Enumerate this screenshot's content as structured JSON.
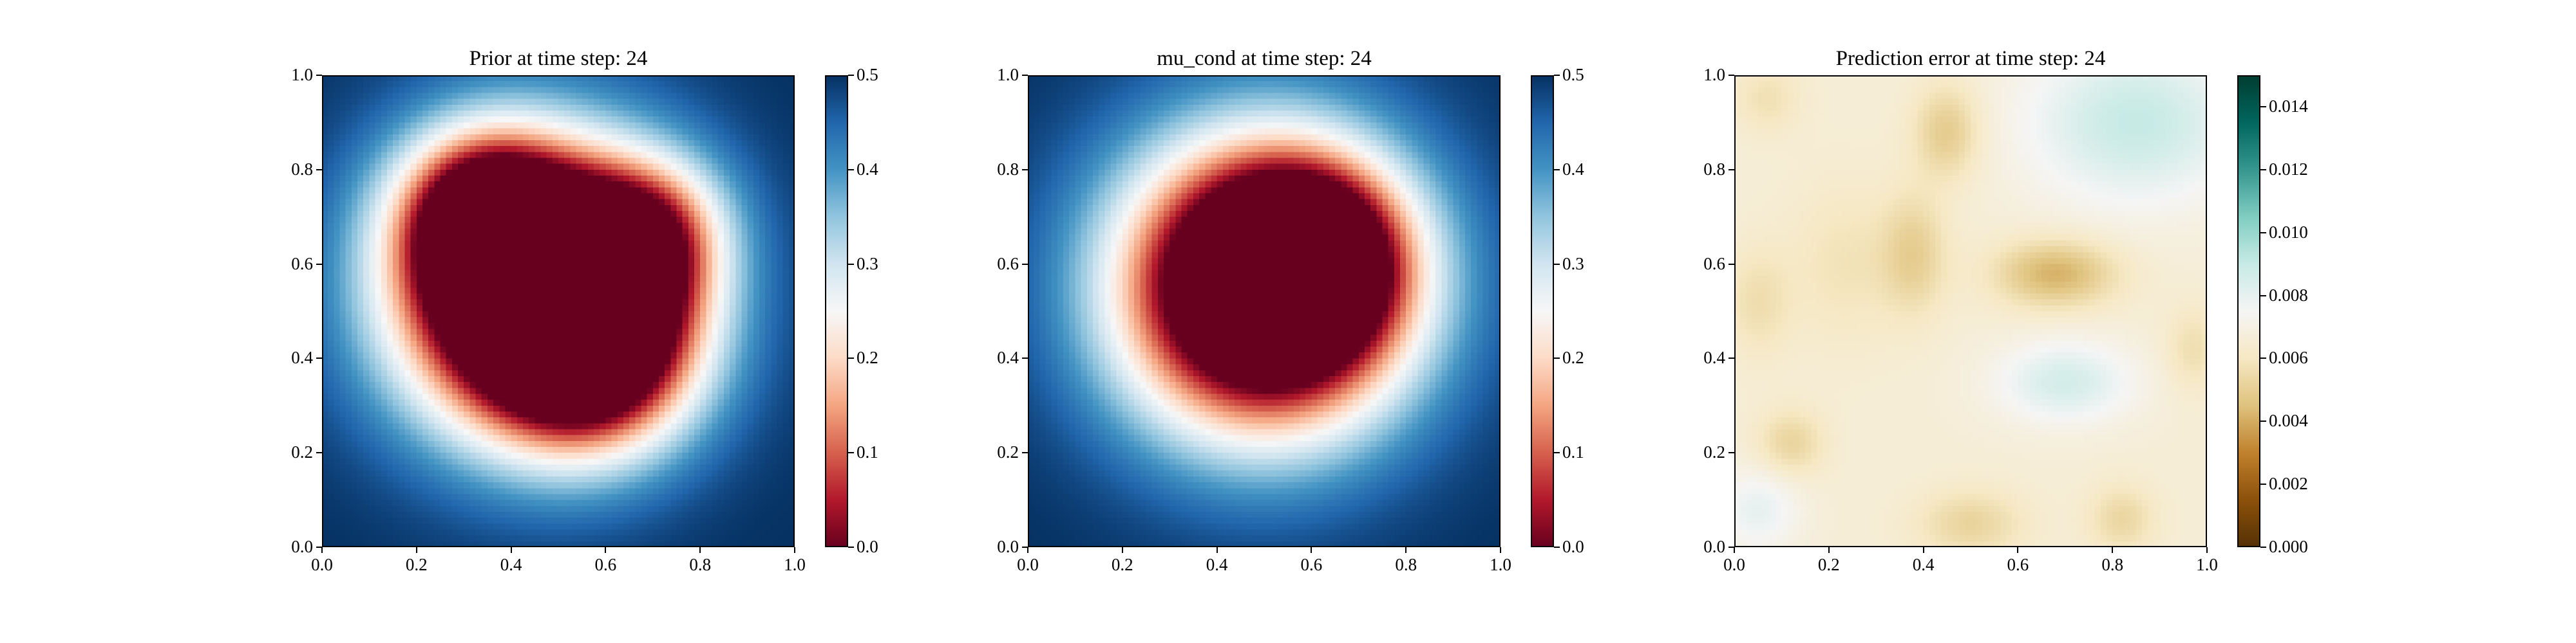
{
  "figure": {
    "panels": [
      {
        "title": "Prior at time step: 24",
        "cmap": "RdBu",
        "colorbar_ticks": [
          "0.0",
          "0.1",
          "0.2",
          "0.3",
          "0.4",
          "0.5"
        ]
      },
      {
        "title": "mu_cond at time step: 24",
        "cmap": "RdBu",
        "colorbar_ticks": [
          "0.0",
          "0.1",
          "0.2",
          "0.3",
          "0.4",
          "0.5"
        ]
      },
      {
        "title": "Prediction error at time step: 24",
        "cmap": "BrBG",
        "colorbar_ticks": [
          "0.000",
          "0.002",
          "0.004",
          "0.006",
          "0.008",
          "0.010",
          "0.012",
          "0.014"
        ]
      }
    ],
    "axis_ticks": [
      "0.0",
      "0.2",
      "0.4",
      "0.6",
      "0.8",
      "1.0"
    ]
  },
  "chart_data": [
    {
      "type": "heatmap",
      "title": "Prior at time step: 24",
      "xlabel": "",
      "ylabel": "",
      "xlim": [
        0,
        1
      ],
      "ylim": [
        0,
        1
      ],
      "xticks": [
        0.0,
        0.2,
        0.4,
        0.6,
        0.8,
        1.0
      ],
      "yticks": [
        0.0,
        0.2,
        0.4,
        0.6,
        0.8,
        1.0
      ],
      "colormap": "RdBu",
      "color_range": [
        0.0,
        0.5
      ],
      "colorbar_ticks": [
        0.0,
        0.1,
        0.2,
        0.3,
        0.4,
        0.5
      ],
      "field": {
        "description_values": "low values (~0.0) in irregular central blob centered near (0.47, 0.55); high values (~0.5) in the corners",
        "blobs": [
          {
            "x": 0.45,
            "y": 0.55,
            "sigma": 0.26,
            "amp": 1.0
          },
          {
            "x": 0.6,
            "y": 0.4,
            "sigma": 0.17,
            "amp": 0.35
          },
          {
            "x": 0.33,
            "y": 0.72,
            "sigma": 0.13,
            "amp": 0.3
          },
          {
            "x": 0.72,
            "y": 0.68,
            "sigma": 0.12,
            "amp": 0.25
          }
        ],
        "background_value": 0.5,
        "center_value": 0.0
      }
    },
    {
      "type": "heatmap",
      "title": "mu_cond at time step: 24",
      "xlabel": "",
      "ylabel": "",
      "xlim": [
        0,
        1
      ],
      "ylim": [
        0,
        1
      ],
      "xticks": [
        0.0,
        0.2,
        0.4,
        0.6,
        0.8,
        1.0
      ],
      "yticks": [
        0.0,
        0.2,
        0.4,
        0.6,
        0.8,
        1.0
      ],
      "colormap": "RdBu",
      "color_range": [
        0.0,
        0.5
      ],
      "colorbar_ticks": [
        0.0,
        0.1,
        0.2,
        0.3,
        0.4,
        0.5
      ],
      "field": {
        "description_values": "smooth circular low-value region (~0.0) centered near (0.5, 0.55); high values (~0.5) in the corners",
        "blobs": [
          {
            "x": 0.5,
            "y": 0.55,
            "sigma": 0.27,
            "amp": 1.0
          },
          {
            "x": 0.62,
            "y": 0.62,
            "sigma": 0.14,
            "amp": 0.25
          }
        ],
        "background_value": 0.5,
        "center_value": 0.0
      }
    },
    {
      "type": "heatmap",
      "title": "Prediction error at time step: 24",
      "xlabel": "",
      "ylabel": "",
      "xlim": [
        0,
        1
      ],
      "ylim": [
        0,
        1
      ],
      "xticks": [
        0.0,
        0.2,
        0.4,
        0.6,
        0.8,
        1.0
      ],
      "yticks": [
        0.0,
        0.2,
        0.4,
        0.6,
        0.8,
        1.0
      ],
      "colormap": "BrBG",
      "color_range": [
        0.0,
        0.015
      ],
      "colorbar_ticks": [
        0.0,
        0.002,
        0.004,
        0.006,
        0.008,
        0.01,
        0.012,
        0.014
      ],
      "field": {
        "description_values": "mostly ~0.006-0.007 with darker brown (~0.004) spots and teal (~0.009) regions top-right and lower-middle-right",
        "background_value": 0.0066,
        "bumps": [
          {
            "x": 0.68,
            "y": 0.58,
            "sx": 0.09,
            "sy": 0.05,
            "amp": -0.0025
          },
          {
            "x": 0.45,
            "y": 0.88,
            "sx": 0.05,
            "sy": 0.07,
            "amp": -0.0018
          },
          {
            "x": 0.38,
            "y": 0.62,
            "sx": 0.05,
            "sy": 0.09,
            "amp": -0.0016
          },
          {
            "x": 0.12,
            "y": 0.22,
            "sx": 0.05,
            "sy": 0.05,
            "amp": -0.0014
          },
          {
            "x": 0.5,
            "y": 0.05,
            "sx": 0.08,
            "sy": 0.05,
            "amp": -0.0014
          },
          {
            "x": 0.82,
            "y": 0.06,
            "sx": 0.05,
            "sy": 0.05,
            "amp": -0.0013
          },
          {
            "x": 0.05,
            "y": 0.52,
            "sx": 0.05,
            "sy": 0.08,
            "amp": -0.001
          },
          {
            "x": 0.07,
            "y": 0.95,
            "sx": 0.05,
            "sy": 0.05,
            "amp": -0.0009
          },
          {
            "x": 0.23,
            "y": 0.6,
            "sx": 0.08,
            "sy": 0.12,
            "amp": -0.0008
          },
          {
            "x": 0.97,
            "y": 0.42,
            "sx": 0.04,
            "sy": 0.06,
            "amp": -0.001
          },
          {
            "x": 0.85,
            "y": 0.9,
            "sx": 0.16,
            "sy": 0.12,
            "amp": 0.0024
          },
          {
            "x": 0.7,
            "y": 0.35,
            "sx": 0.1,
            "sy": 0.06,
            "amp": 0.002
          },
          {
            "x": 0.05,
            "y": 0.08,
            "sx": 0.06,
            "sy": 0.06,
            "amp": 0.0014
          }
        ]
      }
    }
  ]
}
